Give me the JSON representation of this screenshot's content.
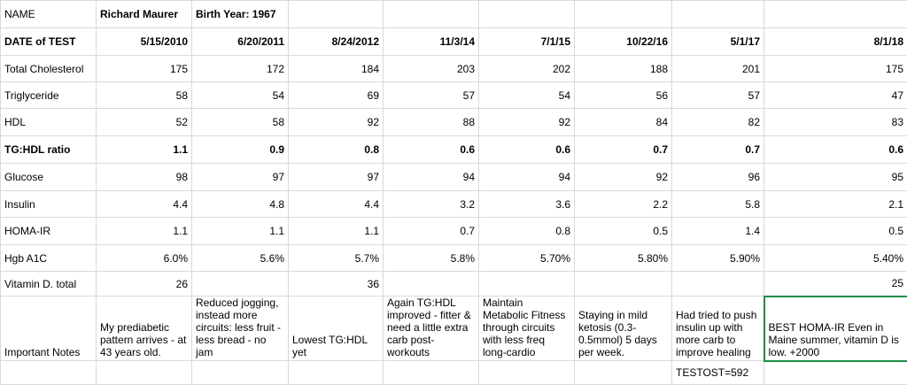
{
  "header": {
    "name_label": "NAME",
    "name": "Richard Maurer",
    "birth_year": "Birth Year: 1967"
  },
  "table": {
    "date_label": "DATE of TEST",
    "dates": [
      "5/15/2010",
      "6/20/2011",
      "8/24/2012",
      "11/3/14",
      "7/1/15",
      "10/22/16",
      "5/1/17",
      "8/1/18"
    ],
    "rows": [
      [
        "Total Cholesterol",
        "175",
        "172",
        "184",
        "203",
        "202",
        "188",
        "201",
        "175"
      ],
      [
        "Triglyceride",
        "58",
        "54",
        "69",
        "57",
        "54",
        "56",
        "57",
        "47"
      ],
      [
        "HDL",
        "52",
        "58",
        "92",
        "88",
        "92",
        "84",
        "82",
        "83"
      ],
      [
        "TG:HDL ratio",
        "1.1",
        "0.9",
        "0.8",
        "0.6",
        "0.6",
        "0.7",
        "0.7",
        "0.6"
      ],
      [
        "Glucose",
        "98",
        "97",
        "97",
        "94",
        "94",
        "92",
        "96",
        "95"
      ],
      [
        "Insulin",
        "4.4",
        "4.8",
        "4.4",
        "3.2",
        "3.6",
        "2.2",
        "5.8",
        "2.1"
      ],
      [
        "HOMA-IR",
        "1.1",
        "1.1",
        "1.1",
        "0.7",
        "0.8",
        "0.5",
        "1.4",
        "0.5"
      ],
      [
        "Hgb A1C",
        "6.0%",
        "5.6%",
        "5.7%",
        "5.8%",
        "5.70%",
        "5.80%",
        "5.90%",
        "5.40%"
      ],
      [
        "Vitamin D. total",
        "26",
        null,
        "36",
        null,
        null,
        null,
        null,
        "25"
      ]
    ],
    "notes": [
      "Important Notes",
      "My prediabetic pattern arrives - at 43 years old.",
      "Reduced jogging, instead more circuits: less fruit - less bread - no jam",
      "Lowest TG:HDL yet",
      "Again TG:HDL improved - fitter & need a little extra carb post-workouts",
      "Maintain Metabolic Fitness through circuits with less freq long-cardio",
      "Staying in mild ketosis (0.3-0.5mmol) 5 days per week.",
      "Had tried to push insulin up with more carb to improve healing",
      "BEST HOMA-IR Even in Maine summer, vitamin D is low. +2000"
    ],
    "extra": [
      null,
      null,
      null,
      null,
      null,
      null,
      null,
      "TESTOST=592",
      null
    ]
  }
}
